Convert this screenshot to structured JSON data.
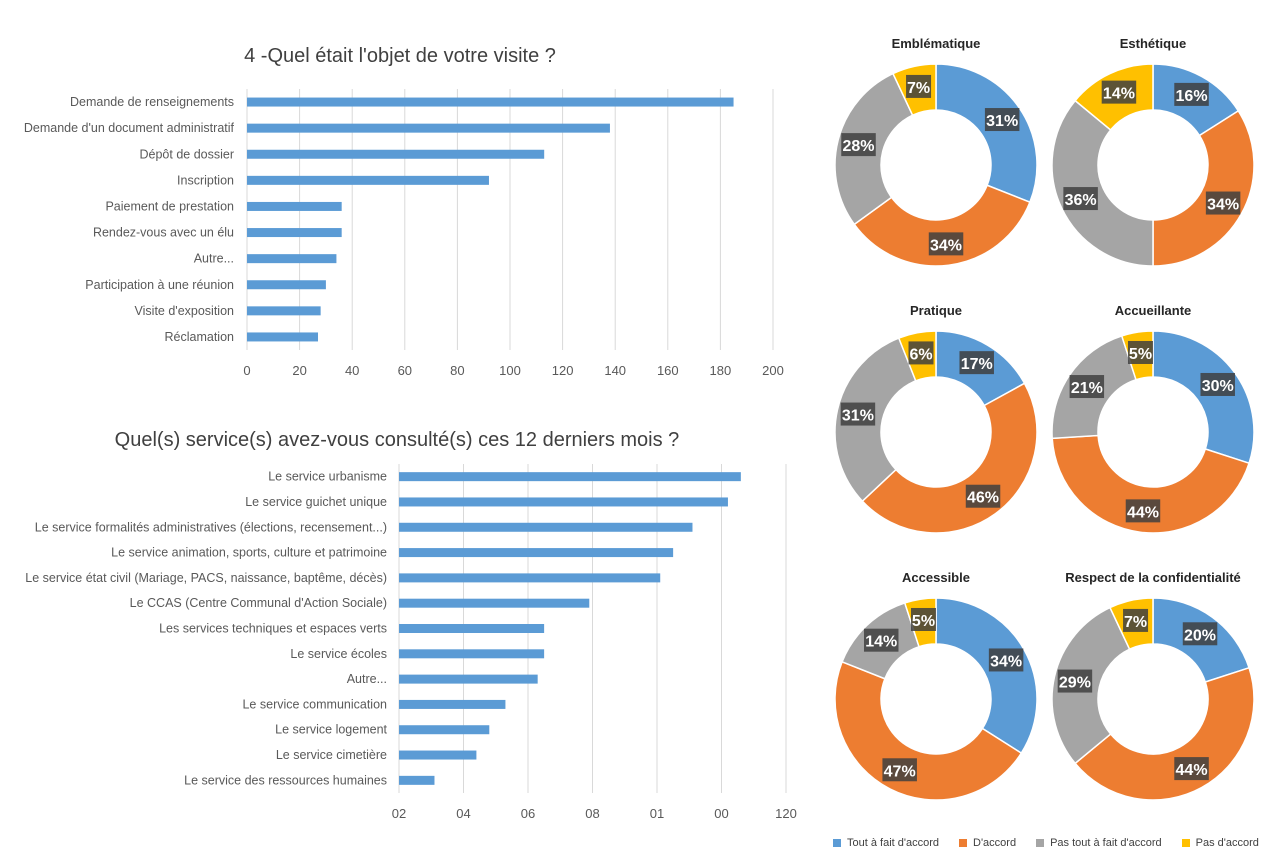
{
  "colors": {
    "blue": "#5b9bd5",
    "orange": "#ed7d31",
    "gray": "#a5a5a5",
    "yellow": "#ffc000",
    "bar": "#5b9bd5",
    "grid": "#d9d9d9",
    "axis_text": "#595959",
    "title": "#404040"
  },
  "chart_data": [
    {
      "type": "bar",
      "orientation": "horizontal",
      "title": "4 -Quel était l'objet de votre visite ?",
      "categories": [
        "Demande de renseignements",
        "Demande d'un document administratif",
        "Dépôt de dossier",
        "Inscription",
        "Paiement de prestation",
        "Rendez-vous avec un élu",
        "Autre...",
        "Participation à une réunion",
        "Visite d'exposition",
        "Réclamation"
      ],
      "values": [
        185,
        138,
        113,
        92,
        36,
        36,
        34,
        30,
        28,
        27
      ],
      "xlim": [
        0,
        200
      ],
      "xticks": [
        "0",
        "20",
        "40",
        "60",
        "80",
        "100",
        "120",
        "140",
        "160",
        "180",
        "200"
      ],
      "grid": true
    },
    {
      "type": "bar",
      "orientation": "horizontal",
      "title": "Quel(s) service(s) avez-vous consulté(s) ces 12 derniers mois ?",
      "categories": [
        "Le service urbanisme",
        "Le service guichet unique",
        "Le service formalités administratives (élections, recensement...)",
        "Le service animation, sports, culture et patrimoine",
        "Le service état civil (Mariage, PACS, naissance, baptême, décès)",
        "Le CCAS (Centre Communal d'Action Sociale)",
        "Les services techniques et espaces verts",
        "Le service écoles",
        "Autre...",
        "Le service communication",
        "Le service logement",
        "Le service cimetière",
        "Le service des ressources humaines"
      ],
      "values": [
        106,
        102,
        91,
        85,
        81,
        59,
        45,
        45,
        43,
        33,
        28,
        24,
        11
      ],
      "xlim": [
        0,
        120
      ],
      "xticks": [
        "02",
        "04",
        "06",
        "08",
        "01",
        "00",
        "120"
      ],
      "grid": true
    },
    {
      "type": "pie",
      "donut": true,
      "title": "Emblématique",
      "labels": [
        "Tout à fait d'accord",
        "D'accord",
        "Pas tout à fait d'accord",
        "Pas d'accord"
      ],
      "values": [
        31,
        34,
        28,
        7
      ]
    },
    {
      "type": "pie",
      "donut": true,
      "title": "Esthétique",
      "labels": [
        "Tout à fait d'accord",
        "D'accord",
        "Pas tout à fait d'accord",
        "Pas d'accord"
      ],
      "values": [
        16,
        34,
        36,
        14
      ]
    },
    {
      "type": "pie",
      "donut": true,
      "title": "Pratique",
      "labels": [
        "Tout à fait d'accord",
        "D'accord",
        "Pas tout à fait d'accord",
        "Pas d'accord"
      ],
      "values": [
        17,
        46,
        31,
        6
      ]
    },
    {
      "type": "pie",
      "donut": true,
      "title": "Accueillante",
      "labels": [
        "Tout à fait d'accord",
        "D'accord",
        "Pas tout à fait d'accord",
        "Pas d'accord"
      ],
      "values": [
        30,
        44,
        21,
        5
      ]
    },
    {
      "type": "pie",
      "donut": true,
      "title": "Accessible",
      "labels": [
        "Tout à fait d'accord",
        "D'accord",
        "Pas tout à fait d'accord",
        "Pas d'accord"
      ],
      "values": [
        34,
        47,
        14,
        5
      ]
    },
    {
      "type": "pie",
      "donut": true,
      "title": "Respect de la confidentialité",
      "labels": [
        "Tout à fait d'accord",
        "D'accord",
        "Pas tout à fait d'accord",
        "Pas d'accord"
      ],
      "values": [
        20,
        44,
        29,
        7
      ]
    }
  ],
  "legend": {
    "placement": "bottom-right",
    "items": [
      {
        "label": "Tout à fait d'accord",
        "color": "#5b9bd5"
      },
      {
        "label": "D'accord",
        "color": "#ed7d31"
      },
      {
        "label": "Pas tout à fait d'accord",
        "color": "#a5a5a5"
      },
      {
        "label": "Pas d'accord",
        "color": "#ffc000"
      }
    ]
  }
}
